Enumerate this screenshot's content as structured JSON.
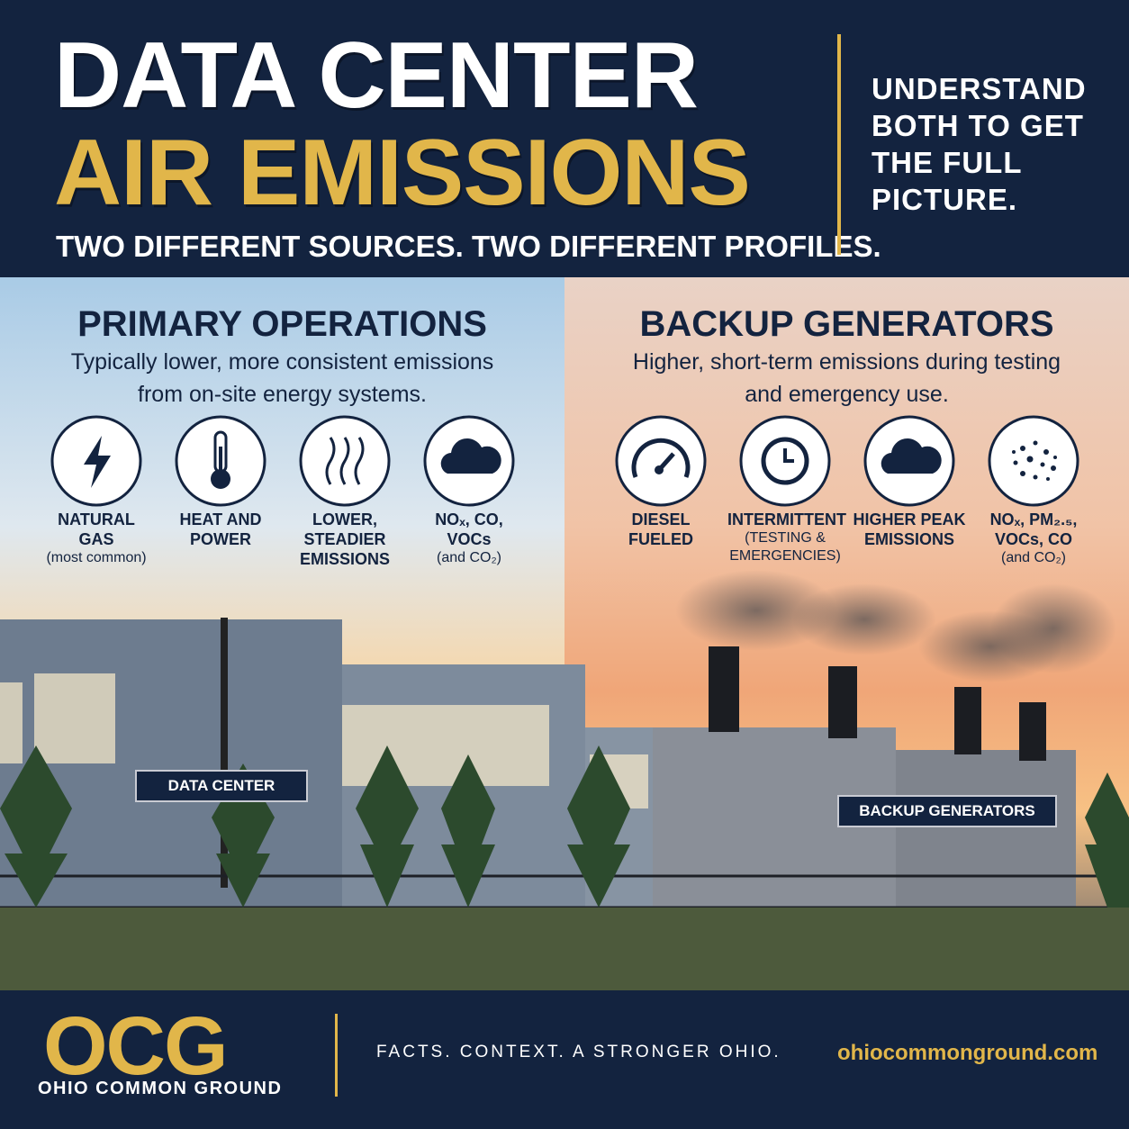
{
  "header": {
    "title_line1": "DATA CENTER",
    "title_line2": "AIR EMISSIONS",
    "subtitle": "TWO DIFFERENT SOURCES. TWO DIFFERENT PROFILES.",
    "side_note": "UNDERSTAND BOTH TO GET THE FULL PICTURE."
  },
  "panels": [
    {
      "title": "PRIMARY OPERATIONS",
      "description": "Typically lower, more consistent emissions from on-site energy systems.",
      "items": [
        {
          "label": "NATURAL GAS",
          "note": "(most common)"
        },
        {
          "label": "HEAT AND POWER"
        },
        {
          "label": "LOWER, STEADIER EMISSIONS"
        },
        {
          "label": "NOₓ, CO, VOCs",
          "note": "(and CO₂)"
        }
      ],
      "photo_label": "DATA CENTER"
    },
    {
      "title": "BACKUP GENERATORS",
      "description": "Higher, short-term emissions during testing and emergency use.",
      "items": [
        {
          "label": "DIESEL FUELED"
        },
        {
          "label": "INTERMITTENT",
          "note": "(TESTING & EMERGENCIES)"
        },
        {
          "label": "HIGHER PEAK EMISSIONS"
        },
        {
          "label": "NOₓ, PM₂.₅, VOCs, CO",
          "note": "(and CO₂)"
        }
      ],
      "photo_label": "BACKUP GENERATORS"
    }
  ],
  "footer": {
    "logo": "OCG",
    "organization": "OHIO COMMON GROUND",
    "tagline": "FACTS. CONTEXT. A STRONGER OHIO.",
    "url": "ohiocommonground.com"
  }
}
